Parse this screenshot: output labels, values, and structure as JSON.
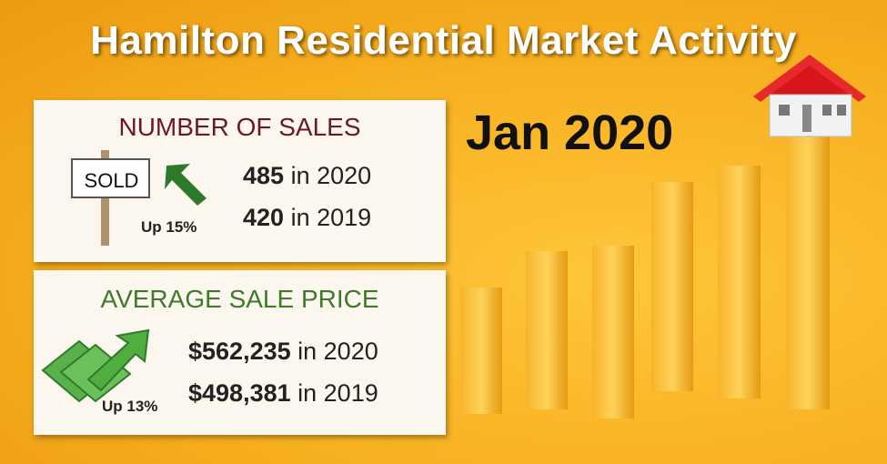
{
  "title": "Hamilton Residential Market Activity",
  "date": "Jan 2020",
  "sales": {
    "heading": "NUMBER OF SALES",
    "sign": "SOLD",
    "change": "Up 15%",
    "rows": [
      {
        "value": "485",
        "suffix": "in 2020"
      },
      {
        "value": "420",
        "suffix": "in 2019"
      }
    ]
  },
  "price": {
    "heading": "AVERAGE SALE PRICE",
    "change": "Up 13%",
    "rows": [
      {
        "value": "$562,235",
        "suffix": "in 2020"
      },
      {
        "value": "$498,381",
        "suffix": "in 2019"
      }
    ]
  }
}
